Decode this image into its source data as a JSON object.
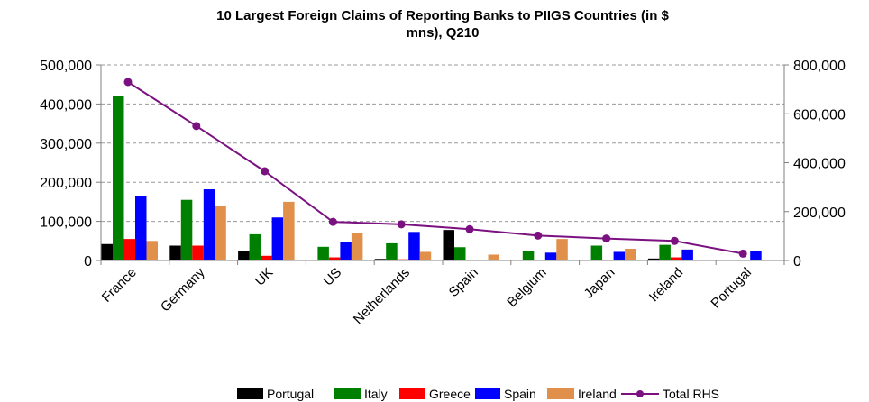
{
  "chart_data": {
    "type": "bar",
    "title_lines": [
      "10 Largest Foreign Claims of Reporting Banks to PIIGS Countries (in $",
      "mns), Q210"
    ],
    "categories": [
      "France",
      "Germany",
      "UK",
      "US",
      "Netherlands",
      "Spain",
      "Belgium",
      "Japan",
      "Ireland",
      "Portugal"
    ],
    "y_left": {
      "min": 0,
      "max": 500000,
      "ticks": [
        "0",
        "100,000",
        "200,000",
        "300,000",
        "400,000",
        "500,000"
      ],
      "tick_values": [
        0,
        100000,
        200000,
        300000,
        400000,
        500000
      ]
    },
    "y_right": {
      "min": 0,
      "max": 800000,
      "ticks": [
        "0",
        "200,000",
        "400,000",
        "600,000",
        "800,000"
      ],
      "tick_values": [
        0,
        200000,
        400000,
        600000,
        800000
      ]
    },
    "grid": "horizontal-dashed",
    "legend_position": "bottom",
    "series": [
      {
        "name": "Portugal",
        "type": "bar",
        "axis": "left",
        "color": "#000000",
        "values": [
          42000,
          38000,
          23000,
          2000,
          4000,
          78000,
          1000,
          2000,
          5000,
          0
        ]
      },
      {
        "name": "Italy",
        "type": "bar",
        "axis": "left",
        "color": "#008000",
        "values": [
          420000,
          155000,
          67000,
          35000,
          44000,
          34000,
          25000,
          38000,
          40000,
          0
        ]
      },
      {
        "name": "Greece",
        "type": "bar",
        "axis": "left",
        "color": "#ff0000",
        "values": [
          55000,
          38000,
          12000,
          8000,
          3000,
          1000,
          1000,
          1000,
          8000,
          0
        ]
      },
      {
        "name": "Spain",
        "type": "bar",
        "axis": "left",
        "color": "#0000ff",
        "values": [
          165000,
          182000,
          110000,
          48000,
          73000,
          0,
          20000,
          22000,
          28000,
          25000
        ]
      },
      {
        "name": "Ireland",
        "type": "bar",
        "axis": "left",
        "color": "#e0904a",
        "values": [
          50000,
          140000,
          150000,
          70000,
          22000,
          15000,
          55000,
          30000,
          0,
          0
        ]
      },
      {
        "name": "Total RHS",
        "type": "line",
        "axis": "right",
        "color": "#7b1080",
        "values": [
          730000,
          550000,
          365000,
          158000,
          148000,
          128000,
          102000,
          90000,
          80000,
          28000
        ]
      }
    ]
  }
}
